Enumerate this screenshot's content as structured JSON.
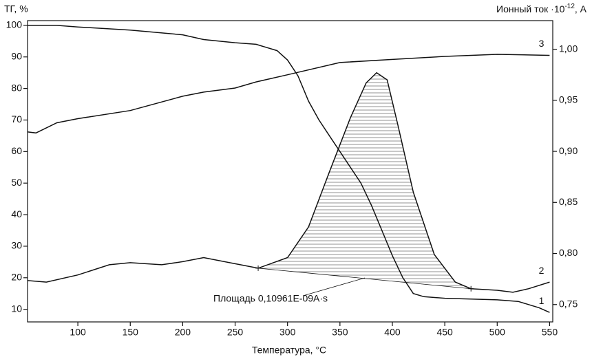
{
  "chart_data": {
    "type": "line",
    "x_label": "Температура, °C",
    "y_label": "ТГ, %",
    "y2_label": {
      "text": "Ионный ток ·10",
      "sup": "-12",
      "unit": ", А"
    },
    "annotation": "Площадь 0,10961E-09A·s",
    "xlim": [
      52,
      553
    ],
    "ylim": [
      6,
      101.5
    ],
    "y2lim": [
      0.733,
      1.028
    ],
    "xticks": [
      100,
      150,
      200,
      250,
      300,
      350,
      400,
      450,
      500,
      550
    ],
    "yticks": [
      10,
      20,
      30,
      40,
      50,
      60,
      70,
      80,
      90,
      100
    ],
    "y2ticks": [
      {
        "value": 0.75,
        "label": "0,75"
      },
      {
        "value": 0.8,
        "label": "0,80"
      },
      {
        "value": 0.85,
        "label": "0,85"
      },
      {
        "value": 0.9,
        "label": "0,90"
      },
      {
        "value": 0.95,
        "label": "0,95"
      },
      {
        "value": 1.0,
        "label": "1,00"
      }
    ],
    "series": [
      {
        "name": "1",
        "color": "#111111",
        "x": [
          52,
          80,
          100,
          150,
          200,
          220,
          250,
          270,
          290,
          300,
          310,
          320,
          330,
          340,
          350,
          360,
          370,
          380,
          390,
          400,
          410,
          420,
          430,
          450,
          500,
          520,
          540,
          550
        ],
        "values": [
          100,
          100,
          99.5,
          98.5,
          97,
          95.5,
          94.5,
          94,
          92,
          89,
          84,
          76,
          70,
          65,
          60,
          55,
          50,
          43,
          35,
          27,
          20,
          15,
          14,
          13.5,
          13,
          12.5,
          10.5,
          9
        ]
      },
      {
        "name": "2",
        "color": "#111111",
        "axis": "y2",
        "x": [
          52,
          70,
          100,
          130,
          150,
          180,
          200,
          220,
          250,
          272,
          300,
          320,
          340,
          360,
          375,
          385,
          395,
          405,
          420,
          440,
          460,
          475,
          500,
          515,
          530,
          550
        ],
        "values": [
          0.7735,
          0.772,
          0.779,
          0.789,
          0.791,
          0.789,
          0.792,
          0.796,
          0.79,
          0.7856,
          0.796,
          0.826,
          0.88,
          0.933,
          0.967,
          0.977,
          0.97,
          0.927,
          0.86,
          0.799,
          0.772,
          0.7655,
          0.764,
          0.762,
          0.7655,
          0.772
        ]
      },
      {
        "name": "3",
        "color": "#111111",
        "axis": "y2",
        "x": [
          52,
          60,
          80,
          100,
          150,
          200,
          220,
          250,
          270,
          300,
          350,
          400,
          450,
          500,
          550
        ],
        "values": [
          0.919,
          0.918,
          0.928,
          0.932,
          0.94,
          0.954,
          0.958,
          0.962,
          0.968,
          0.975,
          0.987,
          0.99,
          0.993,
          0.995,
          0.994
        ]
      }
    ],
    "baseline": {
      "x": [
        272,
        475
      ],
      "values": [
        0.7856,
        0.7655
      ]
    }
  }
}
